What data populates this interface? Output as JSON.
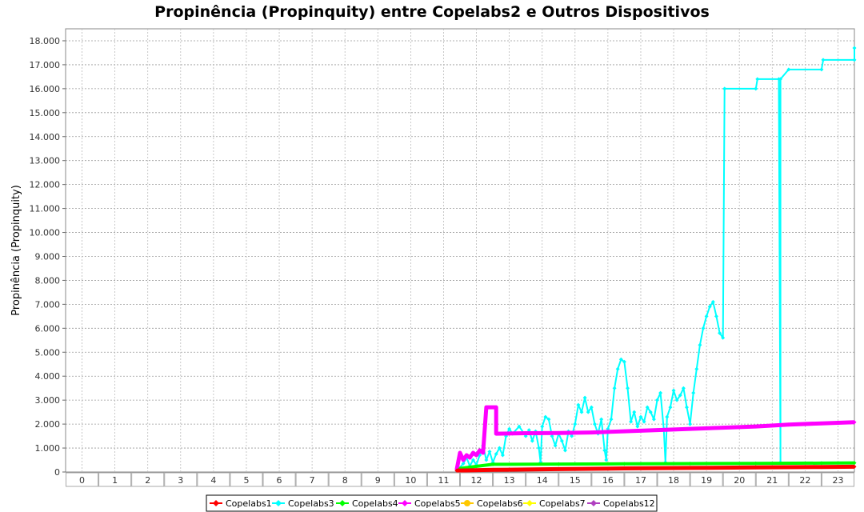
{
  "chart_data": {
    "type": "line",
    "title": "Propinência (Propinquity) entre Copelabs2 e Outros Dispositivos",
    "xlabel": "",
    "ylabel": "Propinência (Propinquity)",
    "categories": [
      "0",
      "1",
      "2",
      "3",
      "4",
      "5",
      "6",
      "7",
      "8",
      "9",
      "10",
      "11",
      "12",
      "13",
      "14",
      "15",
      "16",
      "17",
      "18",
      "19",
      "20",
      "21",
      "22",
      "23"
    ],
    "xlim": [
      0,
      24
    ],
    "ylim": [
      0,
      18500
    ],
    "yticks": [
      0,
      1000,
      2000,
      3000,
      4000,
      5000,
      6000,
      7000,
      8000,
      9000,
      10000,
      11000,
      12000,
      13000,
      14000,
      15000,
      16000,
      17000,
      18000
    ],
    "ytick_labels": [
      "0",
      "1.000",
      "2.000",
      "3.000",
      "4.000",
      "5.000",
      "6.000",
      "7.000",
      "8.000",
      "9.000",
      "10.000",
      "11.000",
      "12.000",
      "13.000",
      "14.000",
      "15.000",
      "16.000",
      "17.000",
      "18.000"
    ],
    "grid": true,
    "legend_position": "bottom",
    "series": [
      {
        "name": "Copelabs1",
        "color": "#ff0000",
        "marker": "diamond",
        "width": 5,
        "points": [
          [
            11.9,
            60
          ],
          [
            13,
            90
          ],
          [
            15,
            120
          ],
          [
            17,
            150
          ],
          [
            19,
            170
          ],
          [
            21,
            190
          ],
          [
            23,
            210
          ],
          [
            24,
            220
          ]
        ]
      },
      {
        "name": "Copelabs3",
        "color": "#00ffff",
        "marker": "diamond",
        "width": 2,
        "points": [
          [
            11.95,
            120
          ],
          [
            12.1,
            350
          ],
          [
            12.2,
            600
          ],
          [
            12.3,
            250
          ],
          [
            12.4,
            500
          ],
          [
            12.5,
            300
          ],
          [
            12.6,
            700
          ],
          [
            12.7,
            1100
          ],
          [
            12.8,
            500
          ],
          [
            12.9,
            850
          ],
          [
            13,
            400
          ],
          [
            13.1,
            750
          ],
          [
            13.2,
            1000
          ],
          [
            13.3,
            700
          ],
          [
            13.4,
            1500
          ],
          [
            13.5,
            1800
          ],
          [
            13.6,
            1600
          ],
          [
            13.8,
            1900
          ],
          [
            14,
            1500
          ],
          [
            14.1,
            1750
          ],
          [
            14.2,
            1300
          ],
          [
            14.3,
            1700
          ],
          [
            14.4,
            1000
          ],
          [
            14.45,
            400
          ],
          [
            14.5,
            1900
          ],
          [
            14.6,
            2300
          ],
          [
            14.7,
            2200
          ],
          [
            14.8,
            1500
          ],
          [
            14.9,
            1100
          ],
          [
            15,
            1600
          ],
          [
            15.1,
            1300
          ],
          [
            15.2,
            900
          ],
          [
            15.3,
            1700
          ],
          [
            15.4,
            1500
          ],
          [
            15.5,
            2000
          ],
          [
            15.6,
            2800
          ],
          [
            15.7,
            2500
          ],
          [
            15.8,
            3100
          ],
          [
            15.9,
            2500
          ],
          [
            16,
            2700
          ],
          [
            16.1,
            2000
          ],
          [
            16.2,
            1600
          ],
          [
            16.3,
            2200
          ],
          [
            16.4,
            900
          ],
          [
            16.45,
            500
          ],
          [
            16.5,
            1800
          ],
          [
            16.6,
            2200
          ],
          [
            16.7,
            3500
          ],
          [
            16.8,
            4300
          ],
          [
            16.9,
            4700
          ],
          [
            17,
            4600
          ],
          [
            17.1,
            3500
          ],
          [
            17.2,
            2100
          ],
          [
            17.3,
            2500
          ],
          [
            17.4,
            1900
          ],
          [
            17.5,
            2300
          ],
          [
            17.6,
            2100
          ],
          [
            17.7,
            2700
          ],
          [
            17.8,
            2500
          ],
          [
            17.9,
            2200
          ],
          [
            18,
            3000
          ],
          [
            18.1,
            3300
          ],
          [
            18.2,
            1800
          ],
          [
            18.25,
            400
          ],
          [
            18.3,
            2300
          ],
          [
            18.4,
            2700
          ],
          [
            18.5,
            3400
          ],
          [
            18.6,
            3000
          ],
          [
            18.7,
            3200
          ],
          [
            18.8,
            3500
          ],
          [
            18.9,
            2700
          ],
          [
            19,
            2000
          ],
          [
            19.1,
            3300
          ],
          [
            19.2,
            4300
          ],
          [
            19.3,
            5300
          ],
          [
            19.4,
            6000
          ],
          [
            19.5,
            6500
          ],
          [
            19.6,
            6900
          ],
          [
            19.7,
            7100
          ],
          [
            19.8,
            6500
          ],
          [
            19.9,
            5800
          ],
          [
            20,
            5600
          ],
          [
            20.05,
            16000
          ],
          [
            21,
            16000
          ],
          [
            21.05,
            16400
          ],
          [
            21.7,
            16400
          ],
          [
            21.75,
            400
          ],
          [
            21.75,
            16400
          ],
          [
            22,
            16800
          ],
          [
            23,
            16800
          ],
          [
            23.05,
            17200
          ],
          [
            24,
            17200
          ],
          [
            24,
            17700
          ]
        ]
      },
      {
        "name": "Copelabs4",
        "color": "#00ff00",
        "marker": "diamond",
        "width": 4,
        "points": [
          [
            12,
            150
          ],
          [
            13,
            320
          ],
          [
            15,
            330
          ],
          [
            17,
            340
          ],
          [
            19,
            350
          ],
          [
            21,
            360
          ],
          [
            23,
            370
          ],
          [
            24,
            380
          ]
        ]
      },
      {
        "name": "Copelabs5",
        "color": "#ff00ff",
        "marker": "diamond",
        "width": 5,
        "points": [
          [
            11.9,
            100
          ],
          [
            12,
            800
          ],
          [
            12.1,
            500
          ],
          [
            12.2,
            700
          ],
          [
            12.3,
            600
          ],
          [
            12.4,
            800
          ],
          [
            12.5,
            700
          ],
          [
            12.6,
            900
          ],
          [
            12.7,
            800
          ],
          [
            12.8,
            2700
          ],
          [
            13.1,
            2700
          ],
          [
            13.1,
            1600
          ],
          [
            14,
            1620
          ],
          [
            15,
            1630
          ],
          [
            16,
            1650
          ],
          [
            17,
            1700
          ],
          [
            18,
            1750
          ],
          [
            19,
            1800
          ],
          [
            20,
            1850
          ],
          [
            21,
            1900
          ],
          [
            22,
            1980
          ],
          [
            23,
            2030
          ],
          [
            24,
            2080
          ]
        ]
      },
      {
        "name": "Copelabs6",
        "color": "#ffc800",
        "marker": "circle",
        "width": 2,
        "points": []
      },
      {
        "name": "Copelabs7",
        "color": "#ffff00",
        "marker": "diamond",
        "width": 2,
        "points": []
      },
      {
        "name": "Copelabs12",
        "color": "#b040c0",
        "marker": "diamond",
        "width": 2,
        "points": []
      }
    ]
  }
}
